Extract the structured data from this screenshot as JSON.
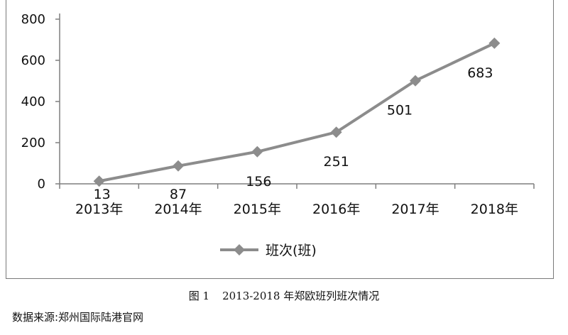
{
  "chart_data": {
    "type": "line",
    "categories": [
      "2013年",
      "2014年",
      "2015年",
      "2016年",
      "2017年",
      "2018年"
    ],
    "series": [
      {
        "name": "班次(班)",
        "values": [
          13,
          87,
          156,
          251,
          501,
          683
        ],
        "color": "#8c8c8c"
      }
    ],
    "y_ticks": [
      0,
      200,
      400,
      600,
      800
    ],
    "ylim": [
      0,
      800
    ],
    "grid": false,
    "legend": "bottom"
  },
  "figure": {
    "caption_label": "图 1",
    "caption_text": "2013-2018 年郑欧班列班次情况",
    "source": "数据来源:郑州国际陆港官网"
  }
}
